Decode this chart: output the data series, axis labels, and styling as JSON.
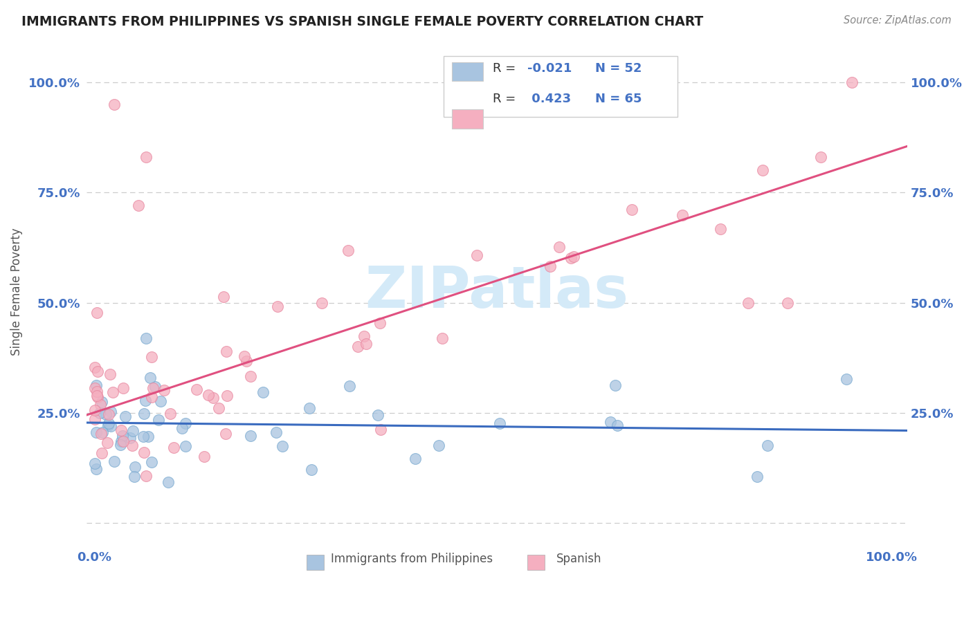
{
  "title": "IMMIGRANTS FROM PHILIPPINES VS SPANISH SINGLE FEMALE POVERTY CORRELATION CHART",
  "source": "Source: ZipAtlas.com",
  "ylabel": "Single Female Poverty",
  "series1_name": "Immigrants from Philippines",
  "series1_color": "#a8c4e0",
  "series1_edge_color": "#7aaad0",
  "series1_line_color": "#3a6bbf",
  "series1_R": -0.021,
  "series1_N": 52,
  "series2_name": "Spanish",
  "series2_color": "#f5afc0",
  "series2_edge_color": "#e888a0",
  "series2_line_color": "#e05080",
  "series2_R": 0.423,
  "series2_N": 65,
  "watermark_text": "ZIPatlas",
  "watermark_color": "#d4eaf8",
  "background_color": "#ffffff",
  "grid_color": "#c8c8c8",
  "title_color": "#222222",
  "axis_tick_color": "#4472c4",
  "ylabel_color": "#555555",
  "source_color": "#888888",
  "legend_border_color": "#cccccc",
  "legend_bg_color": "#ffffff",
  "bottom_legend_color": "#555555",
  "ylim_min": -0.05,
  "ylim_max": 1.1,
  "xlim_min": -0.01,
  "xlim_max": 1.02,
  "yticks": [
    0.0,
    0.25,
    0.5,
    0.75,
    1.0
  ],
  "ytick_labels_left": [
    "",
    "25.0%",
    "50.0%",
    "75.0%",
    "100.0%"
  ],
  "ytick_labels_right": [
    "",
    "25.0%",
    "50.0%",
    "75.0%",
    "100.0%"
  ],
  "xtick_left": "0.0%",
  "xtick_right": "100.0%",
  "pink_line_x0": 0.0,
  "pink_line_y0": 0.245,
  "pink_line_x1": 1.0,
  "pink_line_y1": 0.855,
  "blue_line_x0": 0.0,
  "blue_line_y0": 0.228,
  "blue_line_x1": 1.0,
  "blue_line_y1": 0.21
}
